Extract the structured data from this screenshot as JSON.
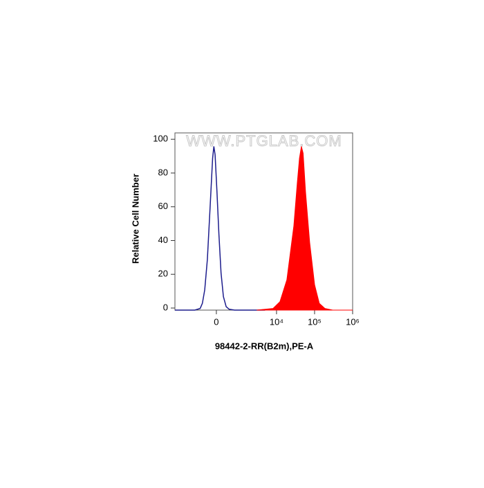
{
  "chart_data": {
    "type": "area",
    "watermark": "WWW.PTGLAB.COM",
    "xlabel": "98442-2-RR(B2m),PE-A",
    "ylabel": "Relative Cell Number",
    "xscale": "biexponential",
    "xlim": [
      -3200,
      1000000
    ],
    "xticks": [
      0,
      {
        "value": 10000,
        "label": "10⁴"
      },
      {
        "value": 100000,
        "label": "10⁵"
      },
      {
        "value": 1000000,
        "label": "10⁶"
      }
    ],
    "ylim": [
      0,
      105
    ],
    "yticks": [
      0,
      20,
      40,
      60,
      80,
      100
    ],
    "series": [
      {
        "color": "#1c1c8c",
        "filled": false,
        "x": [
          -3200,
          -900,
          -600,
          -500,
          -400,
          -300,
          -200,
          -120,
          -80,
          -40,
          20,
          80,
          150,
          230,
          330,
          450,
          700,
          5000
        ],
        "values": [
          0,
          0,
          1,
          4,
          12,
          30,
          62,
          90,
          97,
          92,
          70,
          45,
          22,
          8,
          2,
          0.5,
          0,
          0
        ]
      },
      {
        "color": "#ff0000",
        "filled": true,
        "x": [
          3000,
          8100,
          12300,
          18700,
          28500,
          35100,
          40000,
          45000,
          50000,
          58000,
          74500,
          100000,
          133000,
          187000,
          300000,
          1000000
        ],
        "values": [
          0,
          1,
          5,
          18,
          50,
          75,
          90,
          97,
          93,
          70,
          40,
          15,
          4,
          1,
          0,
          0
        ]
      }
    ]
  }
}
